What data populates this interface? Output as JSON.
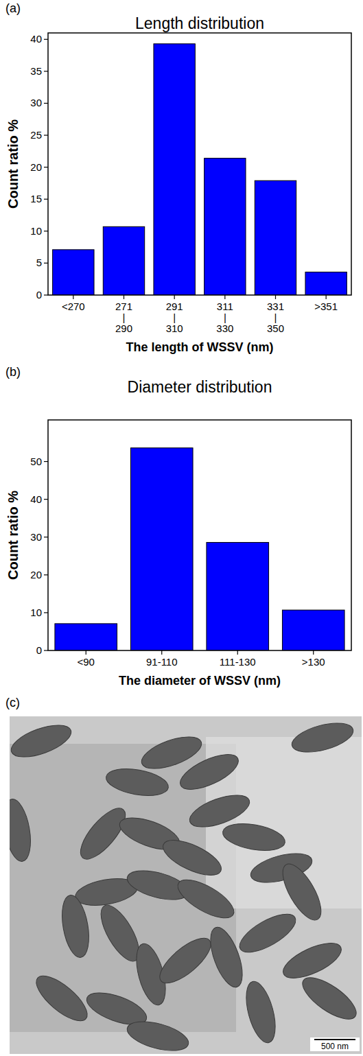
{
  "chart_data": [
    {
      "type": "bar",
      "panel_label": "(a)",
      "title": "Length distribution",
      "x_label": "The length of WSSV (nm)",
      "y_label": "Count ratio %",
      "categories": [
        "<270",
        "271\n|\n290",
        "291\n|\n310",
        "311\n|\n330",
        "331\n|\n350",
        ">351"
      ],
      "values": [
        7.1,
        10.7,
        39.3,
        21.4,
        17.9,
        3.6
      ],
      "color": "#0000ff",
      "ylim": [
        0,
        41
      ],
      "yticks": [
        0,
        5,
        10,
        15,
        20,
        25,
        30,
        35,
        40
      ],
      "grid": false
    },
    {
      "type": "bar",
      "panel_label": "(b)",
      "title": "Diameter distribution",
      "x_label": "The diameter of WSSV (nm)",
      "y_label": "Count ratio %",
      "categories": [
        "<90",
        "91-110",
        "111-130",
        ">130"
      ],
      "values": [
        7.1,
        53.6,
        28.6,
        10.7
      ],
      "color": "#0000ff",
      "ylim": [
        0,
        61
      ],
      "yticks": [
        0,
        10,
        20,
        30,
        40,
        50
      ],
      "grid": false
    }
  ],
  "image": {
    "panel_label": "(c)",
    "scale_bar": "500 nm"
  }
}
